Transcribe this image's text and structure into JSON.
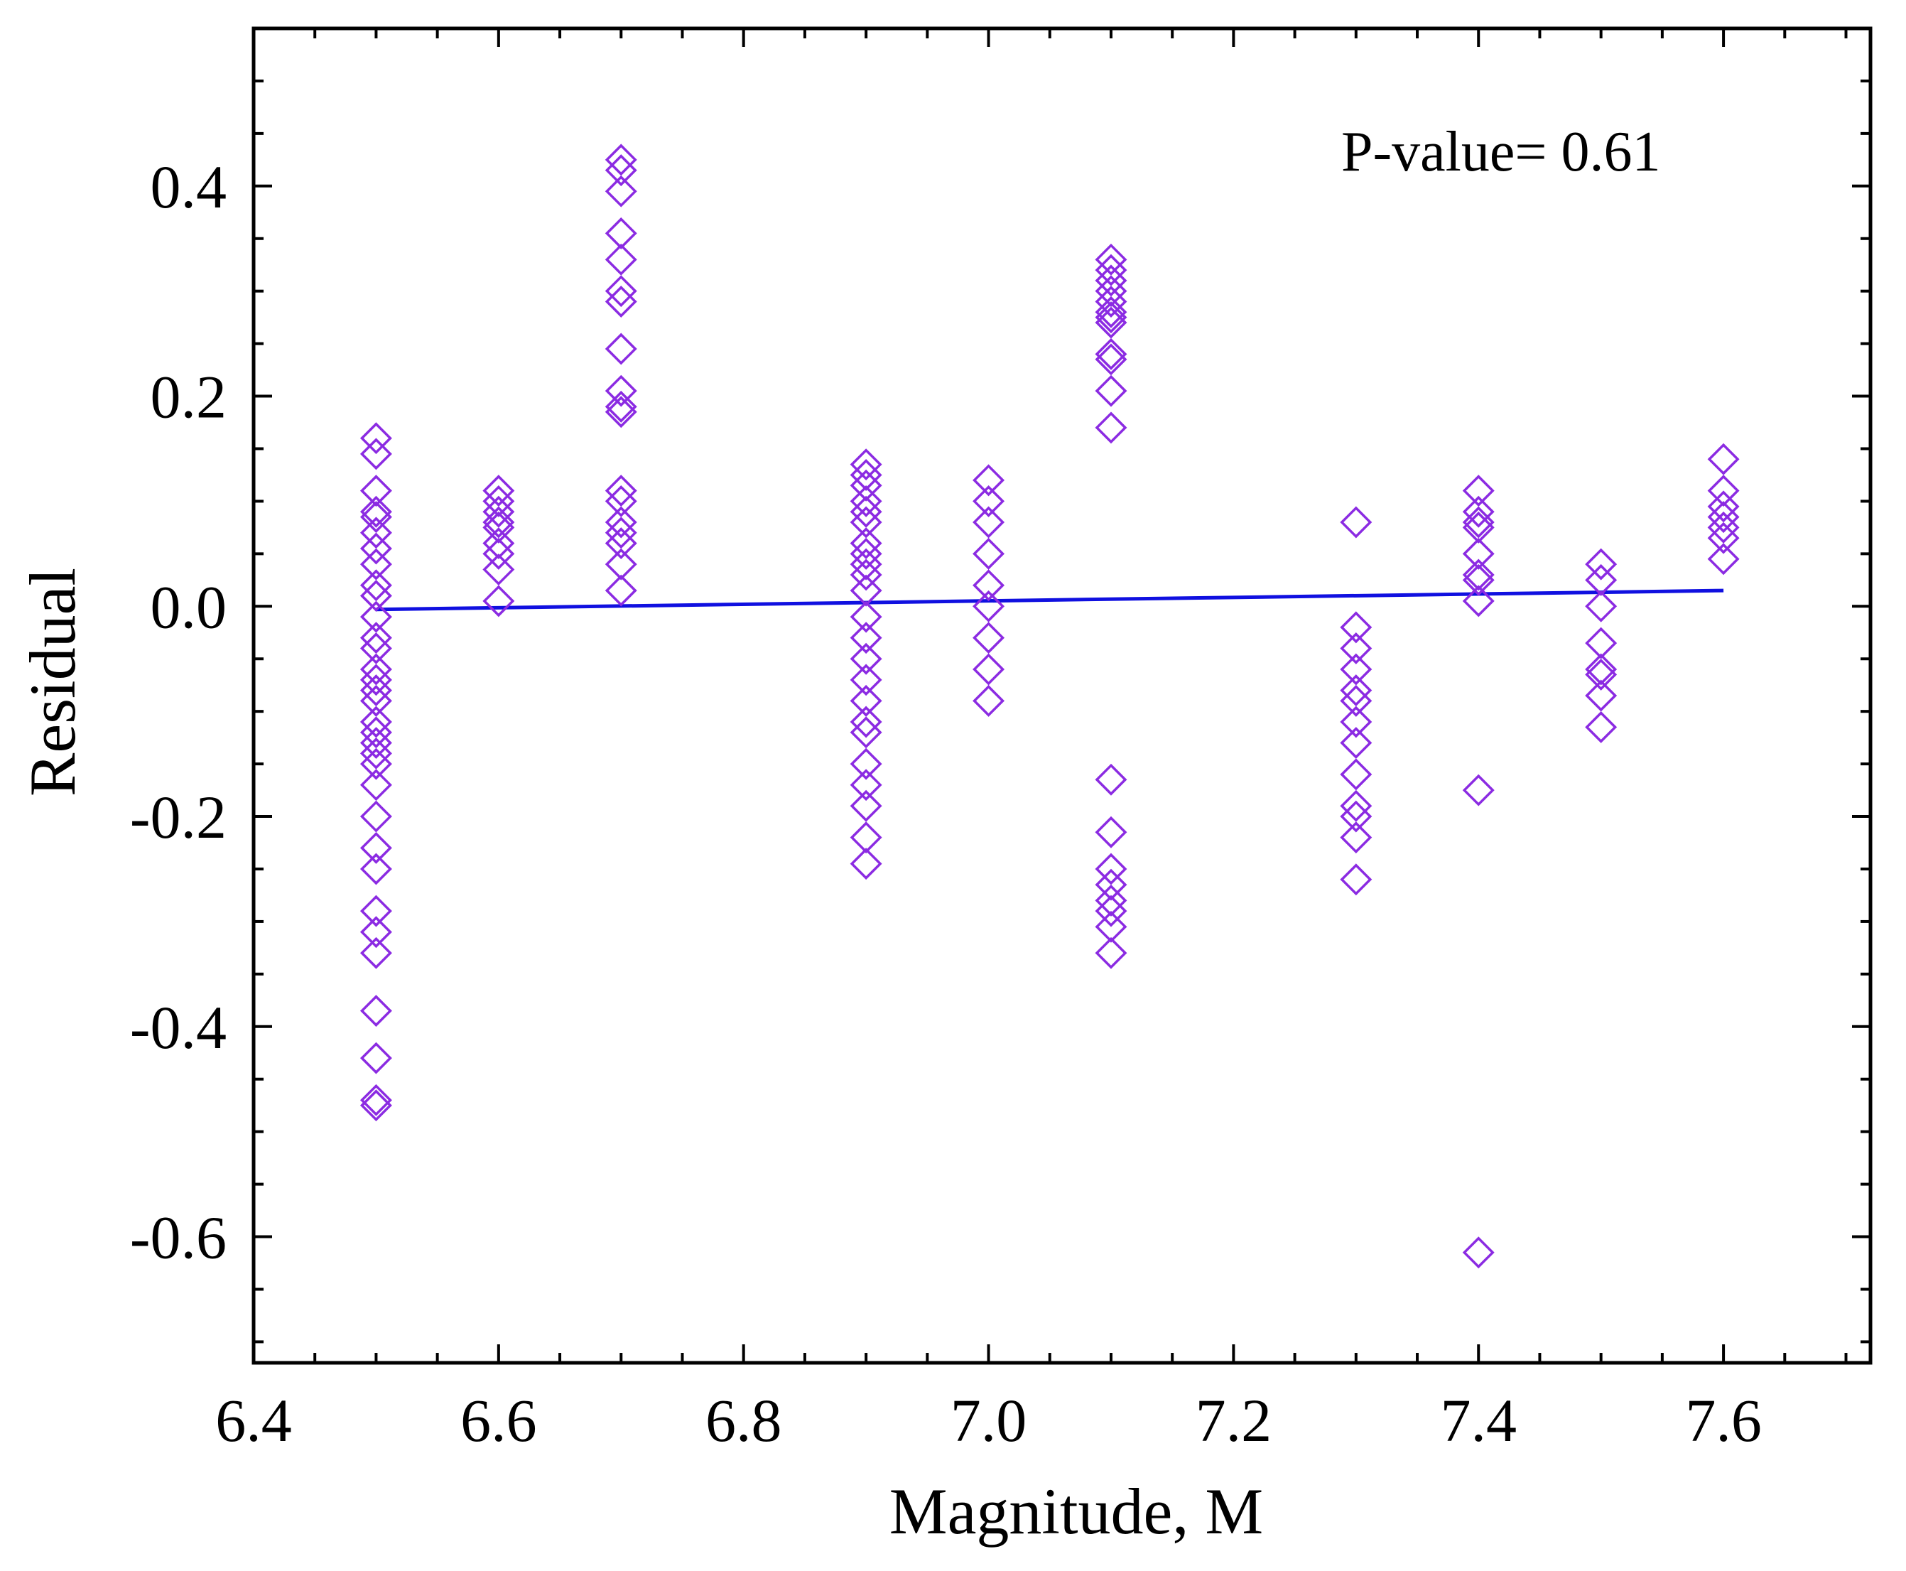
{
  "chart_data": {
    "type": "scatter",
    "title": "",
    "xlabel": "Magnitude, M",
    "ylabel": "Residual",
    "xlim": [
      6.4,
      7.72
    ],
    "ylim": [
      -0.72,
      0.55
    ],
    "x_ticks": [
      6.4,
      6.6,
      6.8,
      7.0,
      7.2,
      7.4,
      7.6
    ],
    "x_tick_labels": [
      "6.4",
      "6.6",
      "6.8",
      "7.0",
      "7.2",
      "7.4",
      "7.6"
    ],
    "x_minor_step": 0.05,
    "y_ticks": [
      -0.6,
      -0.4,
      -0.2,
      0.0,
      0.2,
      0.4
    ],
    "y_tick_labels": [
      "-0.6",
      "-0.4",
      "-0.2",
      "0.0",
      "0.2",
      "0.4"
    ],
    "y_minor_step": 0.05,
    "grid": false,
    "annotation": "P-value= 0.61",
    "colors": {
      "points": "#8b2be2",
      "fit": "#1010e0",
      "axes": "#000000"
    },
    "series": [
      {
        "name": "Residual",
        "marker": "diamond",
        "groups": [
          {
            "x": 6.5,
            "y": [
              0.16,
              0.145,
              0.11,
              0.09,
              0.085,
              0.07,
              0.055,
              0.04,
              0.02,
              0.01,
              -0.01,
              -0.03,
              -0.04,
              -0.06,
              -0.07,
              -0.08,
              -0.09,
              -0.11,
              -0.12,
              -0.13,
              -0.14,
              -0.15,
              -0.17,
              -0.2,
              -0.23,
              -0.25,
              -0.29,
              -0.31,
              -0.33,
              -0.385,
              -0.43,
              -0.47,
              -0.475
            ]
          },
          {
            "x": 6.6,
            "y": [
              0.11,
              0.1,
              0.09,
              0.08,
              0.075,
              0.06,
              0.05,
              0.035,
              0.005
            ]
          },
          {
            "x": 6.7,
            "y": [
              0.425,
              0.415,
              0.395,
              0.355,
              0.33,
              0.3,
              0.29,
              0.245,
              0.205,
              0.19,
              0.185,
              0.11,
              0.1,
              0.08,
              0.07,
              0.06,
              0.04,
              0.015
            ]
          },
          {
            "x": 6.9,
            "y": [
              0.135,
              0.125,
              0.115,
              0.1,
              0.09,
              0.08,
              0.06,
              0.05,
              0.04,
              0.03,
              0.015,
              -0.01,
              -0.03,
              -0.05,
              -0.07,
              -0.09,
              -0.11,
              -0.12,
              -0.15,
              -0.17,
              -0.19,
              -0.22,
              -0.245
            ]
          },
          {
            "x": 7.0,
            "y": [
              0.12,
              0.1,
              0.08,
              0.05,
              0.02,
              0.0,
              -0.03,
              -0.06,
              -0.09
            ]
          },
          {
            "x": 7.1,
            "y": [
              0.33,
              0.32,
              0.31,
              0.3,
              0.29,
              0.28,
              0.275,
              0.27,
              0.24,
              0.235,
              0.205,
              0.17,
              -0.165,
              -0.215,
              -0.25,
              -0.265,
              -0.28,
              -0.29,
              -0.305,
              -0.33
            ]
          },
          {
            "x": 7.3,
            "y": [
              0.08,
              -0.02,
              -0.04,
              -0.06,
              -0.08,
              -0.09,
              -0.11,
              -0.13,
              -0.16,
              -0.19,
              -0.2,
              -0.22,
              -0.26
            ]
          },
          {
            "x": 7.4,
            "y": [
              0.11,
              0.09,
              0.08,
              0.075,
              0.05,
              0.03,
              0.025,
              0.005,
              -0.175,
              -0.615
            ]
          },
          {
            "x": 7.5,
            "y": [
              0.04,
              0.025,
              0.0,
              -0.035,
              -0.06,
              -0.065,
              -0.085,
              -0.115
            ]
          },
          {
            "x": 7.6,
            "y": [
              0.14,
              0.11,
              0.095,
              0.085,
              0.075,
              0.065,
              0.045
            ]
          }
        ]
      },
      {
        "name": "Linear fit",
        "type": "line",
        "x": [
          6.5,
          7.6
        ],
        "y": [
          -0.003,
          0.015
        ]
      }
    ]
  }
}
